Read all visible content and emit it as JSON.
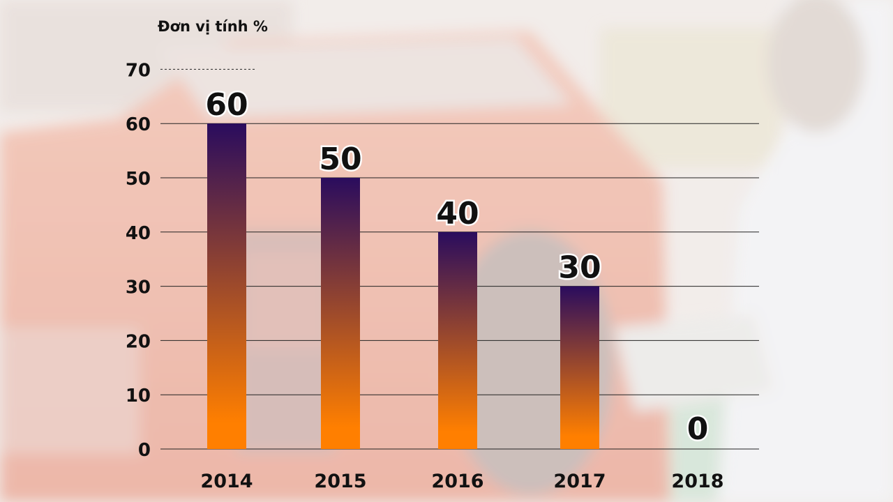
{
  "chart_data": {
    "type": "bar",
    "unit_label": "Đơn vị tính %",
    "categories": [
      "2014",
      "2015",
      "2016",
      "2017",
      "2018"
    ],
    "values": [
      60,
      50,
      40,
      30,
      0
    ],
    "value_labels": [
      "60",
      "50",
      "40",
      "30",
      "0"
    ],
    "y_ticks": [
      0,
      10,
      20,
      30,
      40,
      50,
      60,
      70
    ],
    "ylim": [
      0,
      70
    ],
    "grid": true,
    "bar_gradient": {
      "top": "#2a0c5e",
      "bottom": "#ff7f00"
    },
    "gridline_color": "#222222"
  }
}
